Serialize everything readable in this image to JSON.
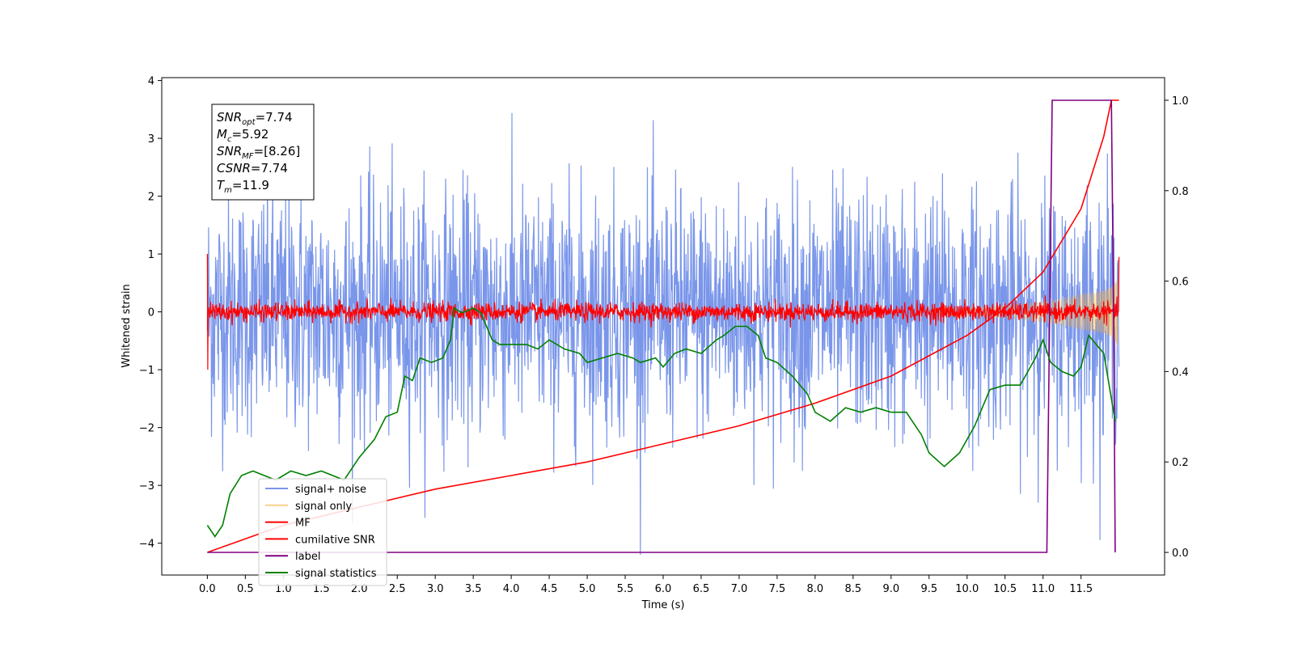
{
  "chart_data": {
    "type": "line",
    "xlabel": "Time (s)",
    "ylabel": "Whitened strain",
    "xlim": [
      -0.6,
      12.6
    ],
    "ylim": [
      -4.55,
      4.05
    ],
    "y2lim": [
      -0.05,
      1.05
    ],
    "grid": false,
    "legend_position": "lower-left",
    "x_ticks": [
      "0.0",
      "0.5",
      "1.0",
      "1.5",
      "2.0",
      "2.5",
      "3.0",
      "3.5",
      "4.0",
      "4.5",
      "5.0",
      "5.5",
      "6.0",
      "6.5",
      "7.0",
      "7.5",
      "8.0",
      "8.5",
      "9.0",
      "9.5",
      "10.0",
      "10.5",
      "11.0",
      "11.5"
    ],
    "y_ticks": [
      "4",
      "3",
      "2",
      "1",
      "0",
      "−1",
      "−2",
      "−3",
      "−4"
    ],
    "y2_ticks": [
      "1.0",
      "0.8",
      "0.6",
      "0.4",
      "0.2",
      "0.0"
    ],
    "annotation": {
      "lines": [
        {
          "sym": "SNR",
          "sub": "opt",
          "val": "=7.74"
        },
        {
          "sym": "M",
          "sub": "c",
          "val": "=5.92"
        },
        {
          "sym": "SNR",
          "sub": "MF",
          "val": "=[8.26]"
        },
        {
          "sym": "CSNR",
          "sub": "",
          "val": "=7.74"
        },
        {
          "sym": "T",
          "sub": "m",
          "val": "=11.9"
        }
      ]
    },
    "series": [
      {
        "name": "signal+ noise",
        "color": "#4169e1",
        "axis": "left",
        "envelope_std": 1.0
      },
      {
        "name": "signal only",
        "color": "#f5b041",
        "axis": "left",
        "peak_time": 12.0
      },
      {
        "name": "MF",
        "color": "#ff0000",
        "axis": "left",
        "envelope_std": 0.08
      },
      {
        "name": "cumilative SNR",
        "color": "#ff0000",
        "axis": "right",
        "x": [
          0.0,
          1.0,
          2.0,
          3.0,
          4.0,
          5.0,
          6.0,
          7.0,
          8.0,
          9.0,
          10.0,
          10.5,
          11.0,
          11.5,
          11.8,
          11.9,
          12.0
        ],
        "y": [
          0.0,
          0.06,
          0.1,
          0.14,
          0.17,
          0.2,
          0.24,
          0.28,
          0.33,
          0.39,
          0.48,
          0.54,
          0.62,
          0.76,
          0.92,
          1.0,
          1.0
        ]
      },
      {
        "name": "label",
        "color": "#800080",
        "axis": "right",
        "x": [
          0.0,
          11.05,
          11.12,
          11.9,
          11.93,
          11.95
        ],
        "y": [
          0.0,
          0.0,
          1.0,
          1.0,
          0.5,
          0.0
        ]
      },
      {
        "name": "signal statistics",
        "color": "#008000",
        "axis": "right",
        "x": [
          0.0,
          0.1,
          0.2,
          0.3,
          0.45,
          0.6,
          0.75,
          0.9,
          1.1,
          1.3,
          1.5,
          1.8,
          2.0,
          2.2,
          2.35,
          2.5,
          2.6,
          2.7,
          2.8,
          2.95,
          3.1,
          3.2,
          3.25,
          3.35,
          3.5,
          3.6,
          3.75,
          3.85,
          4.0,
          4.2,
          4.35,
          4.5,
          4.7,
          4.9,
          5.0,
          5.2,
          5.4,
          5.6,
          5.7,
          5.9,
          6.0,
          6.15,
          6.3,
          6.5,
          6.7,
          6.8,
          6.95,
          7.1,
          7.25,
          7.35,
          7.5,
          7.7,
          7.9,
          8.0,
          8.2,
          8.4,
          8.6,
          8.8,
          9.0,
          9.2,
          9.4,
          9.5,
          9.7,
          9.9,
          10.1,
          10.3,
          10.5,
          10.7,
          10.9,
          11.0,
          11.1,
          11.25,
          11.4,
          11.5,
          11.6,
          11.7,
          11.8,
          11.95
        ],
        "y": [
          0.06,
          0.035,
          0.06,
          0.13,
          0.17,
          0.18,
          0.17,
          0.16,
          0.18,
          0.17,
          0.18,
          0.16,
          0.21,
          0.25,
          0.3,
          0.31,
          0.39,
          0.38,
          0.43,
          0.42,
          0.43,
          0.47,
          0.54,
          0.53,
          0.54,
          0.53,
          0.47,
          0.46,
          0.46,
          0.46,
          0.45,
          0.47,
          0.45,
          0.44,
          0.42,
          0.43,
          0.44,
          0.43,
          0.42,
          0.43,
          0.41,
          0.44,
          0.45,
          0.44,
          0.47,
          0.48,
          0.5,
          0.5,
          0.48,
          0.43,
          0.42,
          0.39,
          0.35,
          0.31,
          0.29,
          0.32,
          0.31,
          0.32,
          0.31,
          0.31,
          0.26,
          0.22,
          0.19,
          0.22,
          0.28,
          0.36,
          0.37,
          0.37,
          0.43,
          0.47,
          0.42,
          0.4,
          0.39,
          0.41,
          0.48,
          0.46,
          0.44,
          0.29
        ]
      }
    ]
  }
}
